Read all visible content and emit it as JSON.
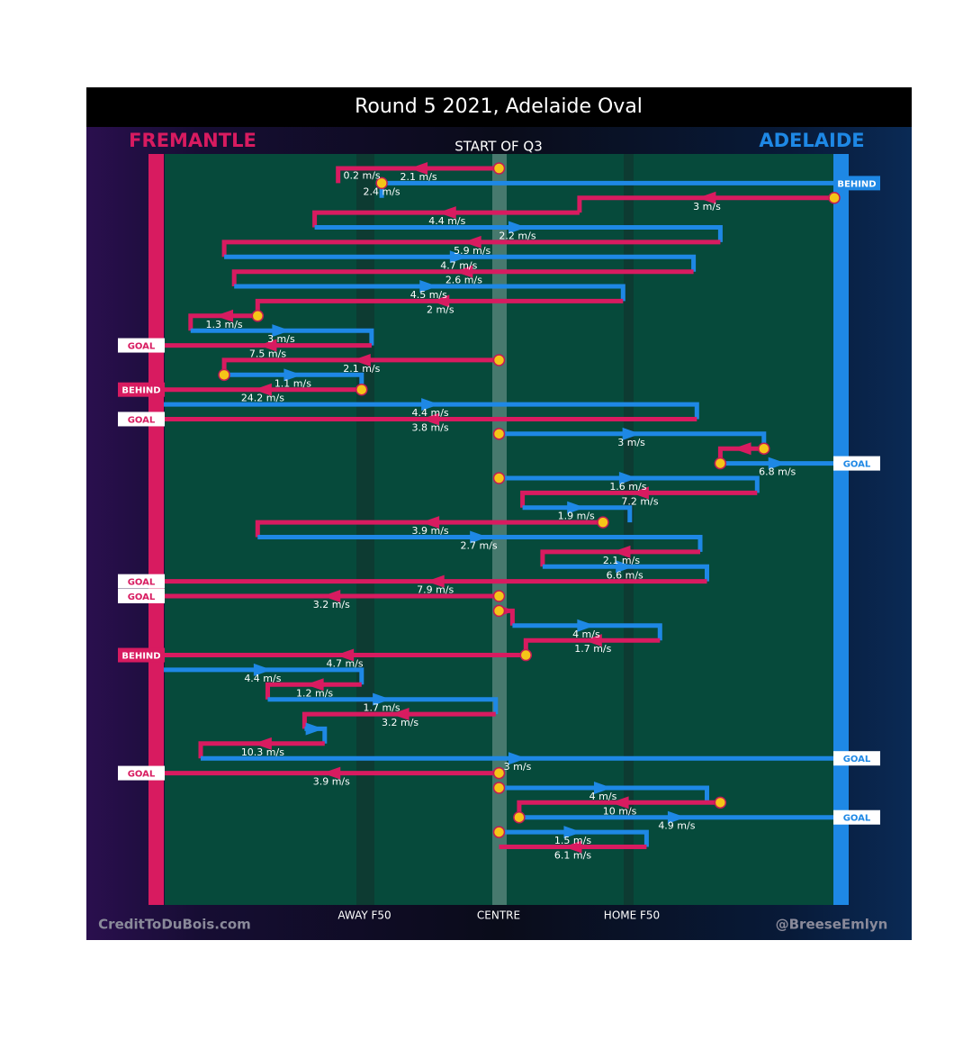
{
  "chart_data": {
    "type": "line",
    "title": "Round 5 2021, Adelaide Oval",
    "subtitle": "START OF Q3",
    "teams": {
      "left": {
        "name": "FREMANTLE",
        "color": "#d81b60"
      },
      "right": {
        "name": "ADELAIDE",
        "color": "#1e88e5"
      }
    },
    "x_tick_labels": [
      "AWAY F50",
      "CENTRE",
      "HOME F50"
    ],
    "credits": {
      "left": "CreditToDuBois.com",
      "right": "@BreeseEmlyn"
    },
    "colors": {
      "fremantle": "#d81b60",
      "adelaide": "#1e88e5",
      "field": "#064a3b",
      "stoppage": "#f5c518"
    },
    "x_range": [
      0,
      100
    ],
    "x_markers": {
      "away_f50": 30,
      "centre": 50,
      "home_f50": 70
    },
    "chains": [
      {
        "team": "F",
        "y": 0,
        "start": 50,
        "segs": [
          [
            50,
            26,
            2
          ],
          [
            26,
            26,
            1
          ]
        ],
        "speed": "2.1 m/s",
        "stoppage": true
      },
      {
        "team": "A",
        "y": 2,
        "start": 32.5,
        "segs": [
          [
            32.5,
            32.5,
            1
          ],
          [
            32.5,
            100,
            2
          ]
        ],
        "speed": "2.4 m/s",
        "start_label": "0.2 m/s",
        "outcome": "BEHIND",
        "stoppage": true
      },
      {
        "team": "F",
        "y": 4,
        "start": 100,
        "segs": [
          [
            100,
            62,
            2
          ],
          [
            62,
            62,
            1
          ]
        ],
        "speed": "3 m/s",
        "stoppage": true
      },
      {
        "team": "F",
        "y": 6,
        "start": 62,
        "segs": [
          [
            62,
            22.5,
            2
          ],
          [
            22.5,
            22.5,
            1
          ]
        ],
        "speed": "4.4 m/s"
      },
      {
        "team": "A",
        "y": 8,
        "start": 22.5,
        "segs": [
          [
            22.5,
            83,
            2
          ],
          [
            83,
            83,
            1
          ]
        ],
        "speed": "2.2 m/s"
      },
      {
        "team": "F",
        "y": 10,
        "start": 83,
        "segs": [
          [
            83,
            9,
            2
          ],
          [
            9,
            9,
            1
          ]
        ],
        "speed": "5.9 m/s"
      },
      {
        "team": "A",
        "y": 12,
        "start": 9,
        "segs": [
          [
            9,
            79,
            2
          ],
          [
            79,
            79,
            1
          ]
        ],
        "speed": "4.7 m/s"
      },
      {
        "team": "F",
        "y": 14,
        "start": 79,
        "segs": [
          [
            79,
            10.5,
            2
          ],
          [
            10.5,
            10.5,
            1
          ]
        ],
        "speed": "2.6 m/s"
      },
      {
        "team": "A",
        "y": 16,
        "start": 10.5,
        "segs": [
          [
            10.5,
            68.5,
            2
          ],
          [
            68.5,
            68.5,
            1
          ]
        ],
        "speed": "4.5 m/s"
      },
      {
        "team": "F",
        "y": 18,
        "start": 68.5,
        "segs": [
          [
            68.5,
            14,
            2
          ],
          [
            14,
            14,
            1
          ]
        ],
        "speed": "2 m/s"
      },
      {
        "team": "F",
        "y": 20,
        "start": 14,
        "segs": [
          [
            14,
            4,
            2
          ],
          [
            4,
            4,
            1
          ]
        ],
        "speed": "1.3 m/s",
        "stoppage": true
      },
      {
        "team": "A",
        "y": 22,
        "start": 4,
        "segs": [
          [
            4,
            31,
            2
          ],
          [
            31,
            31,
            1
          ]
        ],
        "speed": "3 m/s"
      },
      {
        "team": "F",
        "y": 24,
        "start": 31,
        "segs": [
          [
            31,
            0,
            0
          ]
        ],
        "speed": "7.5 m/s",
        "outcome": "GOAL"
      },
      {
        "team": "F",
        "y": 26,
        "start": 50,
        "segs": [
          [
            50,
            9,
            2
          ],
          [
            9,
            9,
            1
          ]
        ],
        "speed": "2.1 m/s",
        "stoppage": true
      },
      {
        "team": "A",
        "y": 28,
        "start": 9,
        "segs": [
          [
            9,
            29.5,
            2
          ],
          [
            29.5,
            29.5,
            1
          ]
        ],
        "speed": "1.1 m/s",
        "stoppage": true
      },
      {
        "team": "F",
        "y": 30,
        "start": 29.5,
        "segs": [
          [
            29.5,
            0,
            0
          ]
        ],
        "speed": "24.2 m/s",
        "outcome": "BEHIND",
        "stoppage": true
      },
      {
        "team": "A",
        "y": 32,
        "start": 0,
        "segs": [
          [
            0,
            79.5,
            2
          ],
          [
            79.5,
            79.5,
            1
          ]
        ],
        "speed": "4.4 m/s"
      },
      {
        "team": "F",
        "y": 34,
        "start": 79.5,
        "segs": [
          [
            79.5,
            0,
            0
          ]
        ],
        "speed": "3.8 m/s",
        "outcome": "GOAL"
      },
      {
        "team": "A",
        "y": 36,
        "start": 50,
        "segs": [
          [
            50,
            89.5,
            2
          ],
          [
            89.5,
            89.5,
            1
          ]
        ],
        "speed": "3 m/s",
        "stoppage": true
      },
      {
        "team": "F",
        "y": 38,
        "start": 89.5,
        "segs": [
          [
            89.5,
            83,
            2
          ],
          [
            83,
            83,
            1
          ]
        ],
        "speed": "",
        "stoppage": true
      },
      {
        "team": "A",
        "y": 40,
        "start": 83,
        "segs": [
          [
            83,
            100,
            0
          ]
        ],
        "speed": "6.8 m/s",
        "outcome": "GOAL",
        "stoppage": true
      },
      {
        "team": "A",
        "y": 42,
        "start": 50,
        "segs": [
          [
            50,
            88.5,
            2
          ],
          [
            88.5,
            88.5,
            1
          ]
        ],
        "speed": "1.6 m/s",
        "stoppage": true
      },
      {
        "team": "F",
        "y": 44,
        "start": 88.5,
        "segs": [
          [
            88.5,
            53.5,
            2
          ],
          [
            53.5,
            53.5,
            1
          ]
        ],
        "speed": "7.2 m/s"
      },
      {
        "team": "A",
        "y": 46,
        "start": 53.5,
        "segs": [
          [
            53.5,
            69.5,
            2
          ],
          [
            69.5,
            69.5,
            1
          ]
        ],
        "speed": "1.9 m/s"
      },
      {
        "team": "F",
        "y": 48,
        "start": 65.5,
        "segs": [
          [
            65.5,
            14,
            2
          ],
          [
            14,
            14,
            1
          ]
        ],
        "speed": "3.9 m/s",
        "stoppage": true
      },
      {
        "team": "A",
        "y": 50,
        "start": 14,
        "segs": [
          [
            14,
            80,
            2
          ],
          [
            80,
            80,
            1
          ]
        ],
        "speed": "2.7 m/s"
      },
      {
        "team": "F",
        "y": 52,
        "start": 80,
        "segs": [
          [
            80,
            56.5,
            2
          ],
          [
            56.5,
            56.5,
            1
          ]
        ],
        "speed": "2.1 m/s"
      },
      {
        "team": "A",
        "y": 54,
        "start": 56.5,
        "segs": [
          [
            56.5,
            81,
            2
          ],
          [
            81,
            81,
            1
          ]
        ],
        "speed": "6.6 m/s"
      },
      {
        "team": "F",
        "y": 56,
        "start": 81,
        "segs": [
          [
            81,
            0,
            0
          ]
        ],
        "speed": "7.9 m/s",
        "outcome": "GOAL"
      },
      {
        "team": "F",
        "y": 58,
        "start": 50,
        "segs": [
          [
            50,
            0,
            0
          ]
        ],
        "speed": "3.2 m/s",
        "outcome": "GOAL",
        "stoppage": true
      },
      {
        "team": "F",
        "y": 60,
        "start": 50,
        "segs": [
          [
            50,
            52,
            1
          ],
          [
            52,
            52,
            1
          ]
        ],
        "speed": "",
        "stoppage": true
      },
      {
        "team": "A",
        "y": 62,
        "start": 52,
        "segs": [
          [
            52,
            74,
            2
          ],
          [
            74,
            74,
            1
          ]
        ],
        "speed": "4 m/s"
      },
      {
        "team": "F",
        "y": 64,
        "start": 74,
        "segs": [
          [
            74,
            54,
            2
          ],
          [
            54,
            54,
            1
          ]
        ],
        "speed": "1.7 m/s"
      },
      {
        "team": "F",
        "y": 66,
        "start": 54,
        "segs": [
          [
            54,
            0,
            0
          ]
        ],
        "speed": "4.7 m/s",
        "outcome": "BEHIND",
        "stoppage": true
      },
      {
        "team": "A",
        "y": 68,
        "start": 0,
        "segs": [
          [
            0,
            29.5,
            2
          ],
          [
            29.5,
            29.5,
            1
          ]
        ],
        "speed": "4.4 m/s"
      },
      {
        "team": "F",
        "y": 70,
        "start": 29.5,
        "segs": [
          [
            29.5,
            15.5,
            2
          ],
          [
            15.5,
            15.5,
            1
          ]
        ],
        "speed": "1.2 m/s"
      },
      {
        "team": "A",
        "y": 72,
        "start": 15.5,
        "segs": [
          [
            15.5,
            49.5,
            2
          ],
          [
            49.5,
            49.5,
            1
          ]
        ],
        "speed": "1.7 m/s"
      },
      {
        "team": "F",
        "y": 74,
        "start": 49.5,
        "segs": [
          [
            49.5,
            21,
            2
          ],
          [
            21,
            21,
            1
          ]
        ],
        "speed": "3.2 m/s"
      },
      {
        "team": "A",
        "y": 76,
        "start": 21,
        "segs": [
          [
            21,
            24,
            2
          ],
          [
            24,
            24,
            1
          ]
        ],
        "speed": ""
      },
      {
        "team": "F",
        "y": 78,
        "start": 24,
        "segs": [
          [
            24,
            5.5,
            2
          ],
          [
            5.5,
            5.5,
            1
          ]
        ],
        "speed": "10.3 m/s"
      },
      {
        "team": "A",
        "y": 80,
        "start": 5.5,
        "segs": [
          [
            5.5,
            100,
            0
          ]
        ],
        "speed": "3 m/s",
        "outcome": "GOAL"
      },
      {
        "team": "F",
        "y": 82,
        "start": 50,
        "segs": [
          [
            50,
            0,
            0
          ]
        ],
        "speed": "3.9 m/s",
        "outcome": "GOAL",
        "stoppage": true
      },
      {
        "team": "A",
        "y": 84,
        "start": 50,
        "segs": [
          [
            50,
            81,
            2
          ],
          [
            81,
            81,
            1
          ]
        ],
        "speed": "4 m/s",
        "stoppage": true
      },
      {
        "team": "F",
        "y": 86,
        "start": 83,
        "segs": [
          [
            83,
            53,
            2
          ],
          [
            53,
            53,
            1
          ]
        ],
        "speed": "10 m/s",
        "stoppage": true
      },
      {
        "team": "A",
        "y": 88,
        "start": 53,
        "segs": [
          [
            53,
            100,
            0
          ]
        ],
        "speed": "4.9 m/s",
        "outcome": "GOAL",
        "stoppage": true
      },
      {
        "team": "A",
        "y": 90,
        "start": 50,
        "segs": [
          [
            50,
            72,
            2
          ],
          [
            72,
            72,
            1
          ]
        ],
        "speed": "1.5 m/s",
        "stoppage": true
      },
      {
        "team": "F",
        "y": 92,
        "start": 72,
        "segs": [
          [
            72,
            50,
            0
          ]
        ],
        "speed": "6.1 m/s"
      }
    ]
  }
}
